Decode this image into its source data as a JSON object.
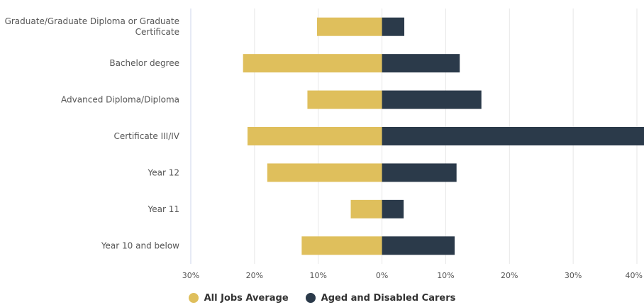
{
  "chart_data": {
    "type": "bar",
    "orientation": "horizontal-diverging",
    "categories": [
      "Graduate/Graduate Diploma or Graduate Certificate",
      "Bachelor degree",
      "Advanced Diploma/Diploma",
      "Certificate III/IV",
      "Year 12",
      "Year 11",
      "Year 10 and below"
    ],
    "category_label_lines": [
      [
        "Graduate/Graduate Diploma or Graduate",
        "Certificate"
      ],
      [
        "Bachelor degree"
      ],
      [
        "Advanced Diploma/Diploma"
      ],
      [
        "Certificate III/IV"
      ],
      [
        "Year 12"
      ],
      [
        "Year 11"
      ],
      [
        "Year 10 and below"
      ]
    ],
    "series": [
      {
        "name": "All Jobs Average",
        "color": "#dfbf5c",
        "side": "left",
        "values": [
          10.2,
          21.8,
          11.7,
          21.1,
          18.0,
          4.9,
          12.6
        ]
      },
      {
        "name": "Aged and Disabled Carers",
        "color": "#2b3a4a",
        "side": "right",
        "values": [
          3.5,
          12.2,
          15.6,
          41.5,
          11.7,
          3.4,
          11.4
        ]
      }
    ],
    "xlim": [
      -30,
      40
    ],
    "x_ticks": [
      -30,
      -20,
      -10,
      0,
      10,
      20,
      30,
      40
    ],
    "x_tick_labels": [
      "30%",
      "20%",
      "10%",
      "0%",
      "10%",
      "20%",
      "30%",
      "40%"
    ],
    "grid": true,
    "legend_position": "bottom-center",
    "title": "",
    "xlabel": "",
    "ylabel": ""
  }
}
